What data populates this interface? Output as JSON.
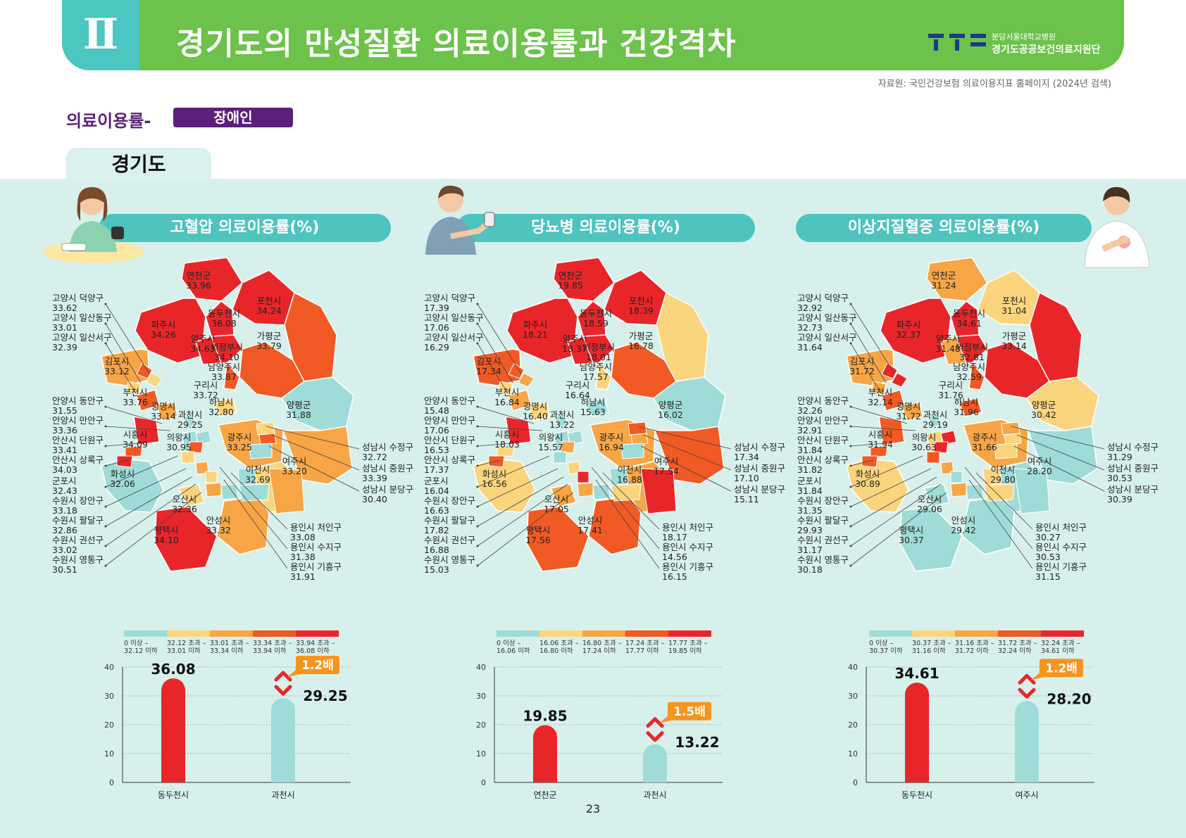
{
  "header": {
    "roman": "Ⅱ",
    "title": "경기도의 만성질환 의료이용률과 건강격차",
    "org_line1": "분당서울대학교병원",
    "org_line2": "경기도공공보건의료지원단"
  },
  "source": "자료원: 국민건강보험 의료이용지표 홈페이지 (2024년 검색)",
  "section": {
    "label": "의료이용률-",
    "badge": "장애인"
  },
  "region_tab": "경기도",
  "page_number": "23",
  "colors": {
    "c1": "#9fdcd8",
    "c2": "#fbd57e",
    "c3": "#f7a545",
    "c4": "#f15a24",
    "c5": "#e8262a",
    "accent": "#4fc3be",
    "header": "#6cc24a",
    "purple": "#5c1f7a"
  },
  "panels": [
    {
      "title": "고혈압 의료이용률(%)",
      "legend": [
        "0 이상 –\n32.12 이하",
        "32.12 초과 –\n33.01 이하",
        "33.01 초과 –\n33.34 이하",
        "33.34 초과 –\n33.94 이하",
        "33.94 초과 –\n36.08 이하"
      ],
      "map_labels": [
        {
          "name": "연천군",
          "value": "33.96",
          "cls": 5
        },
        {
          "name": "포천시",
          "value": "34.24",
          "cls": 5
        },
        {
          "name": "동두천시",
          "value": "36.08",
          "cls": 5
        },
        {
          "name": "파주시",
          "value": "34.26",
          "cls": 5
        },
        {
          "name": "양주시",
          "value": "34.63",
          "cls": 5
        },
        {
          "name": "가평군",
          "value": "33.79",
          "cls": 4
        },
        {
          "name": "의정부시",
          "value": "34.10",
          "cls": 5
        },
        {
          "name": "김포시",
          "value": "33.12",
          "cls": 3
        },
        {
          "name": "남양주시",
          "value": "33.87",
          "cls": 4
        },
        {
          "name": "구리시",
          "value": "33.72",
          "cls": 4
        },
        {
          "name": "부천시",
          "value": "33.76",
          "cls": 4
        },
        {
          "name": "광명시",
          "value": "33.14",
          "cls": 3
        },
        {
          "name": "과천시",
          "value": "29.25",
          "cls": 1
        },
        {
          "name": "하남시",
          "value": "32.80",
          "cls": 2
        },
        {
          "name": "양평군",
          "value": "31.88",
          "cls": 1
        },
        {
          "name": "시흥시",
          "value": "34.09",
          "cls": 5
        },
        {
          "name": "의왕시",
          "value": "30.95",
          "cls": 1
        },
        {
          "name": "광주시",
          "value": "33.25",
          "cls": 3
        },
        {
          "name": "여주시",
          "value": "33.20",
          "cls": 3
        },
        {
          "name": "이천시",
          "value": "32.69",
          "cls": 2
        },
        {
          "name": "화성시",
          "value": "32.06",
          "cls": 1
        },
        {
          "name": "오산시",
          "value": "32.36",
          "cls": 2
        },
        {
          "name": "안성시",
          "value": "33.32",
          "cls": 3
        },
        {
          "name": "평택시",
          "value": "34.10",
          "cls": 5
        }
      ],
      "left_labels": [
        {
          "name": "고양시 덕양구",
          "value": "33.62"
        },
        {
          "name": "고양시 일산동구",
          "value": "33.01"
        },
        {
          "name": "고양시 일산서구",
          "value": "32.39"
        },
        {
          "name": "안양시 동안구",
          "value": "31.55"
        },
        {
          "name": "안양시 만안구",
          "value": "33.36"
        },
        {
          "name": "안산시 단원구",
          "value": "33.41"
        },
        {
          "name": "안산시 상록구",
          "value": "34.03"
        },
        {
          "name": "군포시",
          "value": "32.43"
        },
        {
          "name": "수원시 장안구",
          "value": "33.18"
        },
        {
          "name": "수원시 팔달구",
          "value": "32.86"
        },
        {
          "name": "수원시 권선구",
          "value": "33.02"
        },
        {
          "name": "수원시 영통구",
          "value": "30.51"
        }
      ],
      "right_labels": [
        {
          "name": "성남시 수정구",
          "value": "32.72"
        },
        {
          "name": "성남시 중원구",
          "value": "33.39"
        },
        {
          "name": "성남시 분당구",
          "value": "30.40"
        }
      ],
      "bottom_labels": [
        {
          "name": "용인시 처인구",
          "value": "33.08"
        },
        {
          "name": "용인시 수지구",
          "value": "31.38"
        },
        {
          "name": "용인시 기흥구",
          "value": "31.91"
        }
      ],
      "chart": {
        "yticks": [
          "40",
          "30",
          "20",
          "10",
          "0"
        ],
        "ymax": 40,
        "high": {
          "name": "동두천시",
          "value": 36.08,
          "label": "36.08"
        },
        "low": {
          "name": "과천시",
          "value": 29.25,
          "label": "29.25"
        },
        "ratio": "1.2배"
      }
    },
    {
      "title": "당뇨병 의료이용률(%)",
      "legend": [
        "0 이상 –\n16.06 이하",
        "16.06 초과 –\n16.80 이하",
        "16.80 초과 –\n17.24 이하",
        "17.24 초과 –\n17.77 이하",
        "17.77 초과 –\n19.85 이하"
      ],
      "map_labels": [
        {
          "name": "연천군",
          "value": "19.85",
          "cls": 5
        },
        {
          "name": "포천시",
          "value": "18.39",
          "cls": 5
        },
        {
          "name": "동두천시",
          "value": "18.59",
          "cls": 5
        },
        {
          "name": "파주시",
          "value": "18.21",
          "cls": 5
        },
        {
          "name": "양주시",
          "value": "18.37",
          "cls": 5
        },
        {
          "name": "가평군",
          "value": "16.78",
          "cls": 2
        },
        {
          "name": "의정부시",
          "value": "18.01",
          "cls": 5
        },
        {
          "name": "김포시",
          "value": "17.34",
          "cls": 4
        },
        {
          "name": "남양주시",
          "value": "17.57",
          "cls": 4
        },
        {
          "name": "구리시",
          "value": "16.64",
          "cls": 2
        },
        {
          "name": "부천시",
          "value": "16.84",
          "cls": 3
        },
        {
          "name": "광명시",
          "value": "16.40",
          "cls": 2
        },
        {
          "name": "과천시",
          "value": "13.22",
          "cls": 1
        },
        {
          "name": "하남시",
          "value": "15.63",
          "cls": 1
        },
        {
          "name": "양평군",
          "value": "16.02",
          "cls": 1
        },
        {
          "name": "시흥시",
          "value": "18.03",
          "cls": 5
        },
        {
          "name": "의왕시",
          "value": "15.57",
          "cls": 1
        },
        {
          "name": "광주시",
          "value": "16.94",
          "cls": 3
        },
        {
          "name": "여주시",
          "value": "17.54",
          "cls": 4
        },
        {
          "name": "이천시",
          "value": "16.88",
          "cls": 3
        },
        {
          "name": "화성시",
          "value": "16.56",
          "cls": 2
        },
        {
          "name": "오산시",
          "value": "17.05",
          "cls": 3
        },
        {
          "name": "안성시",
          "value": "17.41",
          "cls": 4
        },
        {
          "name": "평택시",
          "value": "17.56",
          "cls": 4
        }
      ],
      "left_labels": [
        {
          "name": "고양시 덕양구",
          "value": "17.39"
        },
        {
          "name": "고양시 일산동구",
          "value": "17.06"
        },
        {
          "name": "고양시 일산서구",
          "value": "16.29"
        },
        {
          "name": "안양시 동안구",
          "value": "15.48"
        },
        {
          "name": "안양시 만안구",
          "value": "17.06"
        },
        {
          "name": "안산시 단원구",
          "value": "16.53"
        },
        {
          "name": "안산시 상록구",
          "value": "17.37"
        },
        {
          "name": "군포시",
          "value": "16.04"
        },
        {
          "name": "수원시 장안구",
          "value": "16.63"
        },
        {
          "name": "수원시 팔달구",
          "value": "17.82"
        },
        {
          "name": "수원시 권선구",
          "value": "16.88"
        },
        {
          "name": "수원시 영통구",
          "value": "15.03"
        }
      ],
      "right_labels": [
        {
          "name": "성남시 수정구",
          "value": "17.34"
        },
        {
          "name": "성남시 중원구",
          "value": "17.10"
        },
        {
          "name": "성남시 분당구",
          "value": "15.11"
        }
      ],
      "bottom_labels": [
        {
          "name": "용인시 처인구",
          "value": "18.17"
        },
        {
          "name": "용인시 수지구",
          "value": "14.56"
        },
        {
          "name": "용인시 기흥구",
          "value": "16.15"
        }
      ],
      "chart": {
        "yticks": [
          "40",
          "30",
          "20",
          "10",
          "0"
        ],
        "ymax": 40,
        "high": {
          "name": "연천군",
          "value": 19.85,
          "label": "19.85"
        },
        "low": {
          "name": "과천시",
          "value": 13.22,
          "label": "13.22"
        },
        "ratio": "1.5배"
      }
    },
    {
      "title": "이상지질혈증 의료이용률(%)",
      "legend": [
        "0 이상 –\n30.37 이하",
        "30.37 초과 –\n31.16 이하",
        "31.16 초과 –\n31.72 이하",
        "31.72 초과 –\n32.24 이하",
        "32.24 초과 –\n34.61 이하"
      ],
      "map_labels": [
        {
          "name": "연천군",
          "value": "31.24",
          "cls": 3
        },
        {
          "name": "포천시",
          "value": "31.04",
          "cls": 2
        },
        {
          "name": "동두천시",
          "value": "34.61",
          "cls": 5
        },
        {
          "name": "파주시",
          "value": "32.37",
          "cls": 5
        },
        {
          "name": "양주시",
          "value": "31.48",
          "cls": 3
        },
        {
          "name": "가평군",
          "value": "33.14",
          "cls": 5
        },
        {
          "name": "의정부시",
          "value": "32.81",
          "cls": 5
        },
        {
          "name": "김포시",
          "value": "31.72",
          "cls": 3
        },
        {
          "name": "남양주시",
          "value": "32.59",
          "cls": 5
        },
        {
          "name": "구리시",
          "value": "31.76",
          "cls": 4
        },
        {
          "name": "부천시",
          "value": "32.14",
          "cls": 4
        },
        {
          "name": "광명시",
          "value": "31.72",
          "cls": 3
        },
        {
          "name": "과천시",
          "value": "29.19",
          "cls": 1
        },
        {
          "name": "하남시",
          "value": "31.96",
          "cls": 4
        },
        {
          "name": "양평군",
          "value": "30.42",
          "cls": 2
        },
        {
          "name": "시흥시",
          "value": "31.94",
          "cls": 4
        },
        {
          "name": "의왕시",
          "value": "30.63",
          "cls": 2
        },
        {
          "name": "광주시",
          "value": "31.66",
          "cls": 3
        },
        {
          "name": "여주시",
          "value": "28.20",
          "cls": 1
        },
        {
          "name": "이천시",
          "value": "29.80",
          "cls": 1
        },
        {
          "name": "화성시",
          "value": "30.89",
          "cls": 2
        },
        {
          "name": "오산시",
          "value": "29.06",
          "cls": 1
        },
        {
          "name": "안성시",
          "value": "29.42",
          "cls": 1
        },
        {
          "name": "평택시",
          "value": "30.37",
          "cls": 1
        }
      ],
      "left_labels": [
        {
          "name": "고양시 덕양구",
          "value": "32.92"
        },
        {
          "name": "고양시 일산동구",
          "value": "32.73"
        },
        {
          "name": "고양시 일산서구",
          "value": "31.64"
        },
        {
          "name": "안양시 동안구",
          "value": "32.26"
        },
        {
          "name": "안양시 만안구",
          "value": "32.91"
        },
        {
          "name": "안산시 단원구",
          "value": "31.84"
        },
        {
          "name": "안산시 상록구",
          "value": "31.82"
        },
        {
          "name": "군포시",
          "value": "31.84"
        },
        {
          "name": "수원시 장안구",
          "value": "31.35"
        },
        {
          "name": "수원시 팔달구",
          "value": "29.93"
        },
        {
          "name": "수원시 권선구",
          "value": "31.17"
        },
        {
          "name": "수원시 영통구",
          "value": "30.18"
        }
      ],
      "right_labels": [
        {
          "name": "성남시 수정구",
          "value": "31.29"
        },
        {
          "name": "성남시 중원구",
          "value": "30.53"
        },
        {
          "name": "성남시 분당구",
          "value": "30.39"
        }
      ],
      "bottom_labels": [
        {
          "name": "용인시 처인구",
          "value": "30.27"
        },
        {
          "name": "용인시 수지구",
          "value": "30.53"
        },
        {
          "name": "용인시 기흥구",
          "value": "31.15"
        }
      ],
      "chart": {
        "yticks": [
          "40",
          "30",
          "20",
          "10",
          "0"
        ],
        "ymax": 40,
        "high": {
          "name": "동두천시",
          "value": 34.61,
          "label": "34.61"
        },
        "low": {
          "name": "여주시",
          "value": 28.2,
          "label": "28.20"
        },
        "ratio": "1.2배"
      }
    }
  ]
}
